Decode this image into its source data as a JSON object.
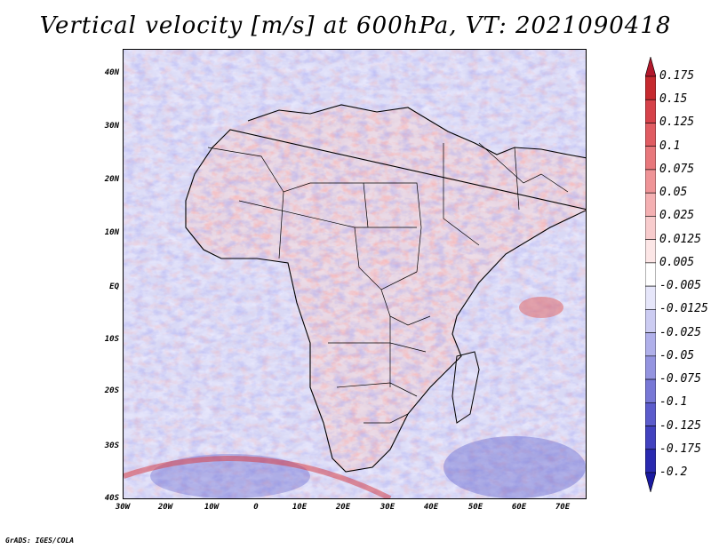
{
  "title": "Vertical velocity [m/s] at 600hPa, VT: 2021090418",
  "credit": "GrADS: IGES/COLA",
  "map": {
    "region": "Africa",
    "projection": "lat-lon",
    "lon_range": [
      -30,
      75
    ],
    "lat_range": [
      -40,
      45
    ],
    "lat_ticks": [
      "40N",
      "30N",
      "20N",
      "10N",
      "EQ",
      "10S",
      "20S",
      "30S",
      "40S"
    ],
    "lon_ticks": [
      "30W",
      "20W",
      "10W",
      "0",
      "10E",
      "20E",
      "30E",
      "40E",
      "50E",
      "60E",
      "70E"
    ]
  },
  "colorbar": {
    "labels": [
      "0.175",
      "0.15",
      "0.125",
      "0.1",
      "0.075",
      "0.05",
      "0.025",
      "0.0125",
      "0.005",
      "-0.005",
      "-0.0125",
      "-0.025",
      "-0.05",
      "-0.075",
      "-0.1",
      "-0.125",
      "-0.175",
      "-0.2"
    ],
    "colors": [
      "#b2182b",
      "#c62a2f",
      "#d6424a",
      "#e05c62",
      "#e8787c",
      "#ef9497",
      "#f4b0b2",
      "#f8cccd",
      "#fce6e6",
      "#ffffff",
      "#e6e6fa",
      "#ccccf2",
      "#b0b0ea",
      "#9494e0",
      "#7878d6",
      "#5c5ccc",
      "#4242bf",
      "#2a2ab0",
      "#1a1aa0"
    ]
  },
  "colors": {
    "positive": "#d6424a",
    "negative": "#5c5ccc",
    "neutral": "#ffffff"
  }
}
